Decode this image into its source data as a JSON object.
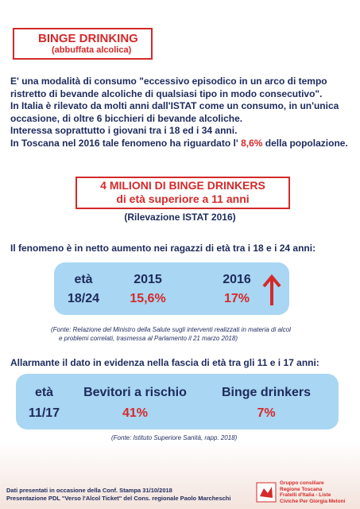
{
  "header": {
    "title": "BINGE DRINKING",
    "subtitle": "(abbuffata alcolica)"
  },
  "intro": {
    "sentences": [
      "E' una modalità di consumo \"eccessivo episodico in un arco di tempo ristretto di bevande alcoliche di qualsiasi tipo in modo consecutivo\".",
      "In Italia è rilevato da molti anni dall'ISTAT come un consumo, in un'unica occasione, di oltre 6 bicchieri di bevande alcoliche.",
      "Interessa soprattutto i giovani tra i 18 ed i 34 anni."
    ],
    "toscana": {
      "before": "In Toscana nel 2016 tale fenomeno ha riguardato l'",
      "highlight": "8,6%",
      "after": "della popolazione."
    }
  },
  "headline": {
    "line1": "4 MILIONI DI BINGE DRINKERS",
    "line2": "di età superiore a 11 anni",
    "source": "(Rilevazione ISTAT 2016)"
  },
  "trend": {
    "intro": "Il fenomeno è in netto aumento nei ragazzi di età tra i 18 e i 24 anni:",
    "table": {
      "header": [
        "età",
        "2015",
        "2016"
      ],
      "row": [
        "18/24",
        "15,6%",
        "17%"
      ]
    },
    "source": [
      "(Fonte: Relazione del Ministro della Salute sugli interventi realizzati in materia di alcol",
      "e problemi correlati, trasmessa al Parlamento il 21 marzo 2018)"
    ]
  },
  "youth": {
    "intro": "Allarmante il dato in evidenza nella fascia di età tra gli 11 e i 17 anni:",
    "table": {
      "header": [
        "età",
        "Bevitori a rischio",
        "Binge drinkers"
      ],
      "row": [
        "11/17",
        "41%",
        "7%"
      ]
    },
    "source": "(Fonte: Istituto Superiore Sanità, rapp. 2018)"
  },
  "footer": {
    "lines": [
      "Dati presentati in occasione della Conf. Stampa 31/10/2018",
      "Presentazione PDL \"Verso l'Alcol Ticket\" del Cons. regionale Paolo Marcheschi"
    ],
    "group": [
      "Gruppo consiliare",
      "Regione Toscana",
      "Fratelli d'Italia - Liste",
      "Civiche Per Giorgia Meloni"
    ]
  }
}
